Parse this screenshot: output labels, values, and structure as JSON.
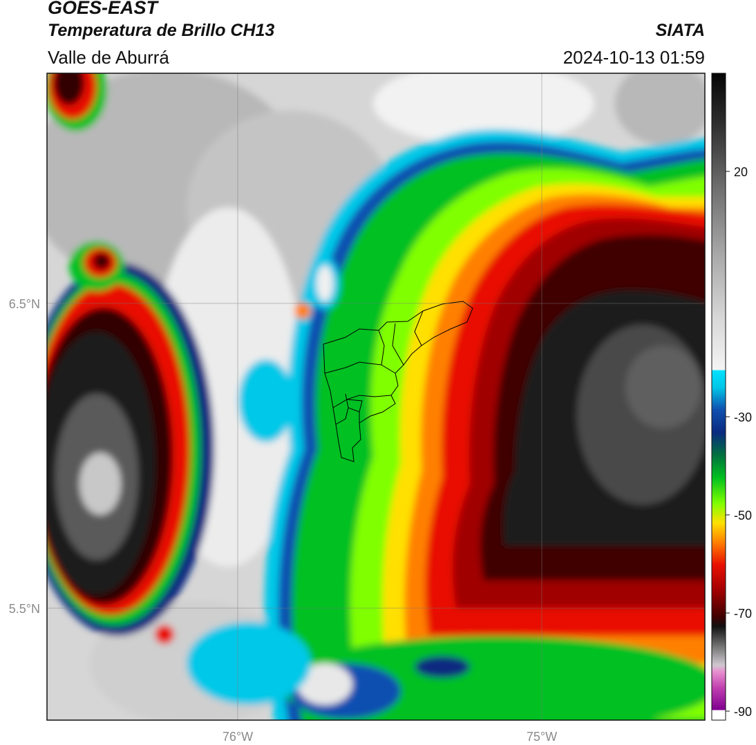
{
  "header": {
    "title": "GOES-EAST",
    "subtitle": "Temperatura de Brillo CH13",
    "region": "Valle de Aburrá",
    "organization": "SIATA",
    "timestamp": "2024-10-13 01:59"
  },
  "map": {
    "lat_labels": [
      "6.5°N",
      "5.5°N"
    ],
    "lon_labels": [
      "76°W",
      "75°W"
    ]
  },
  "colorbar": {
    "tick_labels": [
      "20",
      "-30",
      "-50",
      "-70",
      "-90"
    ],
    "colors": {
      "black": "#111111",
      "dark_gray": "#5a5a5a",
      "gray": "#a0a0a0",
      "light_gray": "#e8e8e8",
      "cyan": "#00c8e8",
      "blue": "#1050b0",
      "navy": "#0a2a80",
      "green": "#00c020",
      "lime": "#80ff00",
      "yellow": "#ffe000",
      "orange": "#ff8000",
      "red": "#e81000",
      "dark_red": "#600000",
      "magenta": "#e050c0",
      "purple": "#800090"
    }
  }
}
